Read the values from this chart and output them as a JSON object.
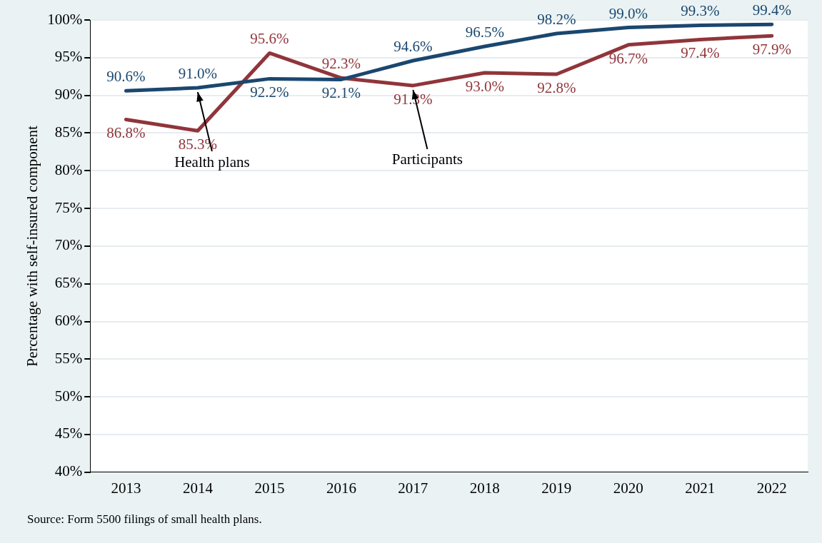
{
  "chart_data": {
    "type": "line",
    "ylabel": "Percentage with self-insured component",
    "categories": [
      "2013",
      "2014",
      "2015",
      "2016",
      "2017",
      "2018",
      "2019",
      "2020",
      "2021",
      "2022"
    ],
    "series": [
      {
        "color": "#1a476f",
        "values": [
          90.6,
          91.0,
          92.2,
          92.1,
          94.6,
          96.5,
          98.2,
          99.0,
          99.3,
          99.4
        ],
        "value_labels": [
          "90.6%",
          "91.0%",
          "92.2%",
          "92.1%",
          "94.6%",
          "96.5%",
          "98.2%",
          "99.0%",
          "99.3%",
          "99.4%"
        ]
      },
      {
        "color": "#90353b",
        "values": [
          86.8,
          85.3,
          95.6,
          92.3,
          91.3,
          93.0,
          92.8,
          96.7,
          97.4,
          97.9
        ],
        "value_labels": [
          "86.8%",
          "85.3%",
          "95.6%",
          "92.3%",
          "91.3%",
          "93.0%",
          "92.8%",
          "96.7%",
          "97.4%",
          "97.9%"
        ]
      }
    ],
    "ylim": [
      40,
      100
    ],
    "yticks": [
      {
        "value": 40,
        "label": "40%"
      },
      {
        "value": 45,
        "label": "45%"
      },
      {
        "value": 50,
        "label": "50%"
      },
      {
        "value": 55,
        "label": "55%"
      },
      {
        "value": 60,
        "label": "60%"
      },
      {
        "value": 65,
        "label": "65%"
      },
      {
        "value": 70,
        "label": "70%"
      },
      {
        "value": 75,
        "label": "75%"
      },
      {
        "value": 80,
        "label": "80%"
      },
      {
        "value": 85,
        "label": "85%"
      },
      {
        "value": 90,
        "label": "90%"
      },
      {
        "value": 95,
        "label": "95%"
      },
      {
        "value": 100,
        "label": "100%"
      }
    ],
    "grid": "y",
    "legend": false,
    "marker": "none",
    "line_style": "solid",
    "annotations": [
      {
        "text": "Health plans",
        "x": "2014",
        "y": 91.0
      },
      {
        "text": "Participants",
        "x": "2017",
        "y": 91.3
      },
      "Source: Form 5500 filings of small health plans."
    ]
  }
}
